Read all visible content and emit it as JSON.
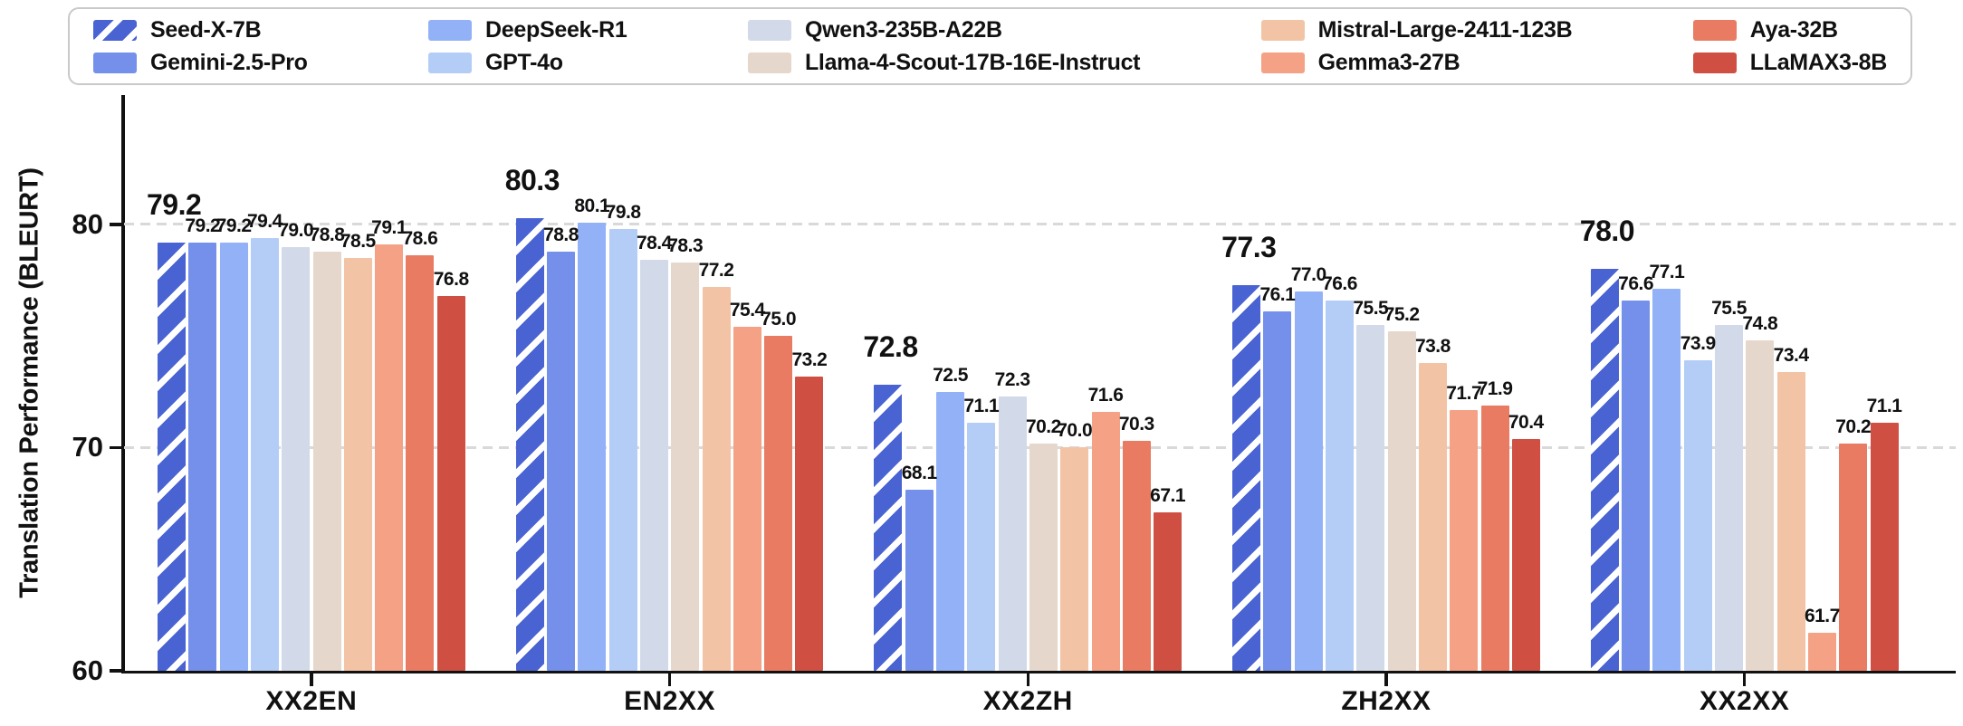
{
  "chart_data": {
    "type": "bar",
    "title": "",
    "ylabel": "Translation Performance (BLEURT)",
    "xlabel": "",
    "categories": [
      "XX2EN",
      "EN2XX",
      "XX2ZH",
      "ZH2XX",
      "XX2XX"
    ],
    "series": [
      {
        "name": "Seed-X-7B",
        "color": "#4a63d2",
        "hatch": true,
        "big_labels": true,
        "values": [
          79.2,
          80.3,
          72.8,
          77.3,
          78.0
        ]
      },
      {
        "name": "Gemini-2.5-Pro",
        "color": "#7490ea",
        "hatch": false,
        "big_labels": false,
        "values": [
          79.2,
          78.8,
          68.1,
          76.1,
          76.6
        ]
      },
      {
        "name": "DeepSeek-R1",
        "color": "#93b1f7",
        "hatch": false,
        "big_labels": false,
        "values": [
          79.2,
          80.1,
          72.5,
          77.0,
          77.1
        ]
      },
      {
        "name": "GPT-4o",
        "color": "#b3cdf7",
        "hatch": false,
        "big_labels": false,
        "values": [
          79.4,
          79.8,
          71.1,
          76.6,
          73.9
        ]
      },
      {
        "name": "Qwen3-235B-A22B",
        "color": "#d2d9e8",
        "hatch": false,
        "big_labels": false,
        "values": [
          79.0,
          78.4,
          72.3,
          75.5,
          75.5
        ]
      },
      {
        "name": "Llama-4-Scout-17B-16E-Instruct",
        "color": "#e6d7cc",
        "hatch": false,
        "big_labels": false,
        "values": [
          78.8,
          78.3,
          70.2,
          75.2,
          74.8
        ]
      },
      {
        "name": "Mistral-Large-2411-123B",
        "color": "#f3c3a6",
        "hatch": false,
        "big_labels": false,
        "values": [
          78.5,
          77.2,
          70.0,
          73.8,
          73.4
        ]
      },
      {
        "name": "Gemma3-27B",
        "color": "#f4a185",
        "hatch": false,
        "big_labels": false,
        "values": [
          79.1,
          75.4,
          71.6,
          71.7,
          61.7
        ]
      },
      {
        "name": "Aya-32B",
        "color": "#e87b62",
        "hatch": false,
        "big_labels": false,
        "values": [
          78.6,
          75.0,
          70.3,
          71.9,
          70.2
        ]
      },
      {
        "name": "LLaMAX3-8B",
        "color": "#cf4f43",
        "hatch": false,
        "big_labels": false,
        "values": [
          76.8,
          73.2,
          67.1,
          70.4,
          71.1
        ]
      }
    ],
    "yticks": [
      60,
      70,
      80
    ],
    "ylim": [
      60,
      85.8
    ],
    "grid": "horizontal dashed at 70 and 80",
    "grid_color": "#d9d9d9",
    "legend_position": "top",
    "legend_columns": 5,
    "axis_color": "#111111",
    "value_labels_shown": true
  }
}
